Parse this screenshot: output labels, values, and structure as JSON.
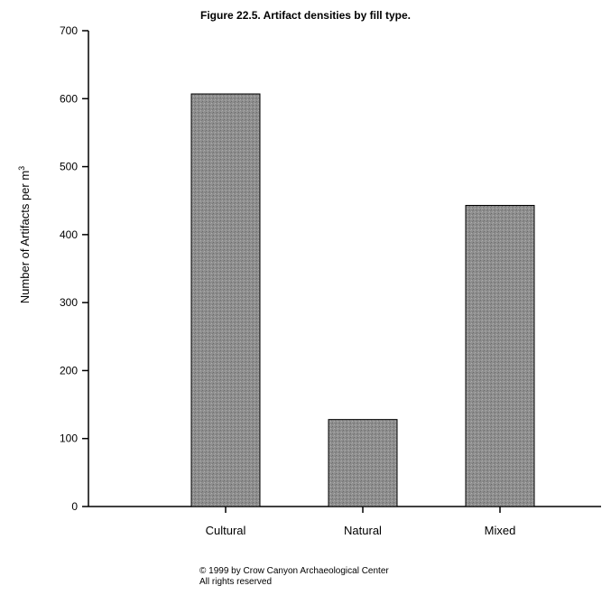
{
  "chart_data": {
    "type": "bar",
    "title": "Figure 22.5.  Artifact densities by fill type.",
    "xlabel": "",
    "ylabel": "Number of Artifacts per m",
    "ylabel_superscript": "3",
    "categories": [
      "Cultural",
      "Natural",
      "Mixed"
    ],
    "values": [
      607,
      128,
      443
    ],
    "ylim": [
      0,
      700
    ],
    "yticks": [
      0,
      100,
      200,
      300,
      400,
      500,
      600,
      700
    ],
    "grid": false,
    "legend": "none",
    "bar_color": "#8c8c8c"
  },
  "footer": {
    "line1": "© 1999 by Crow Canyon Archaeological Center",
    "line2": "All rights reserved"
  }
}
